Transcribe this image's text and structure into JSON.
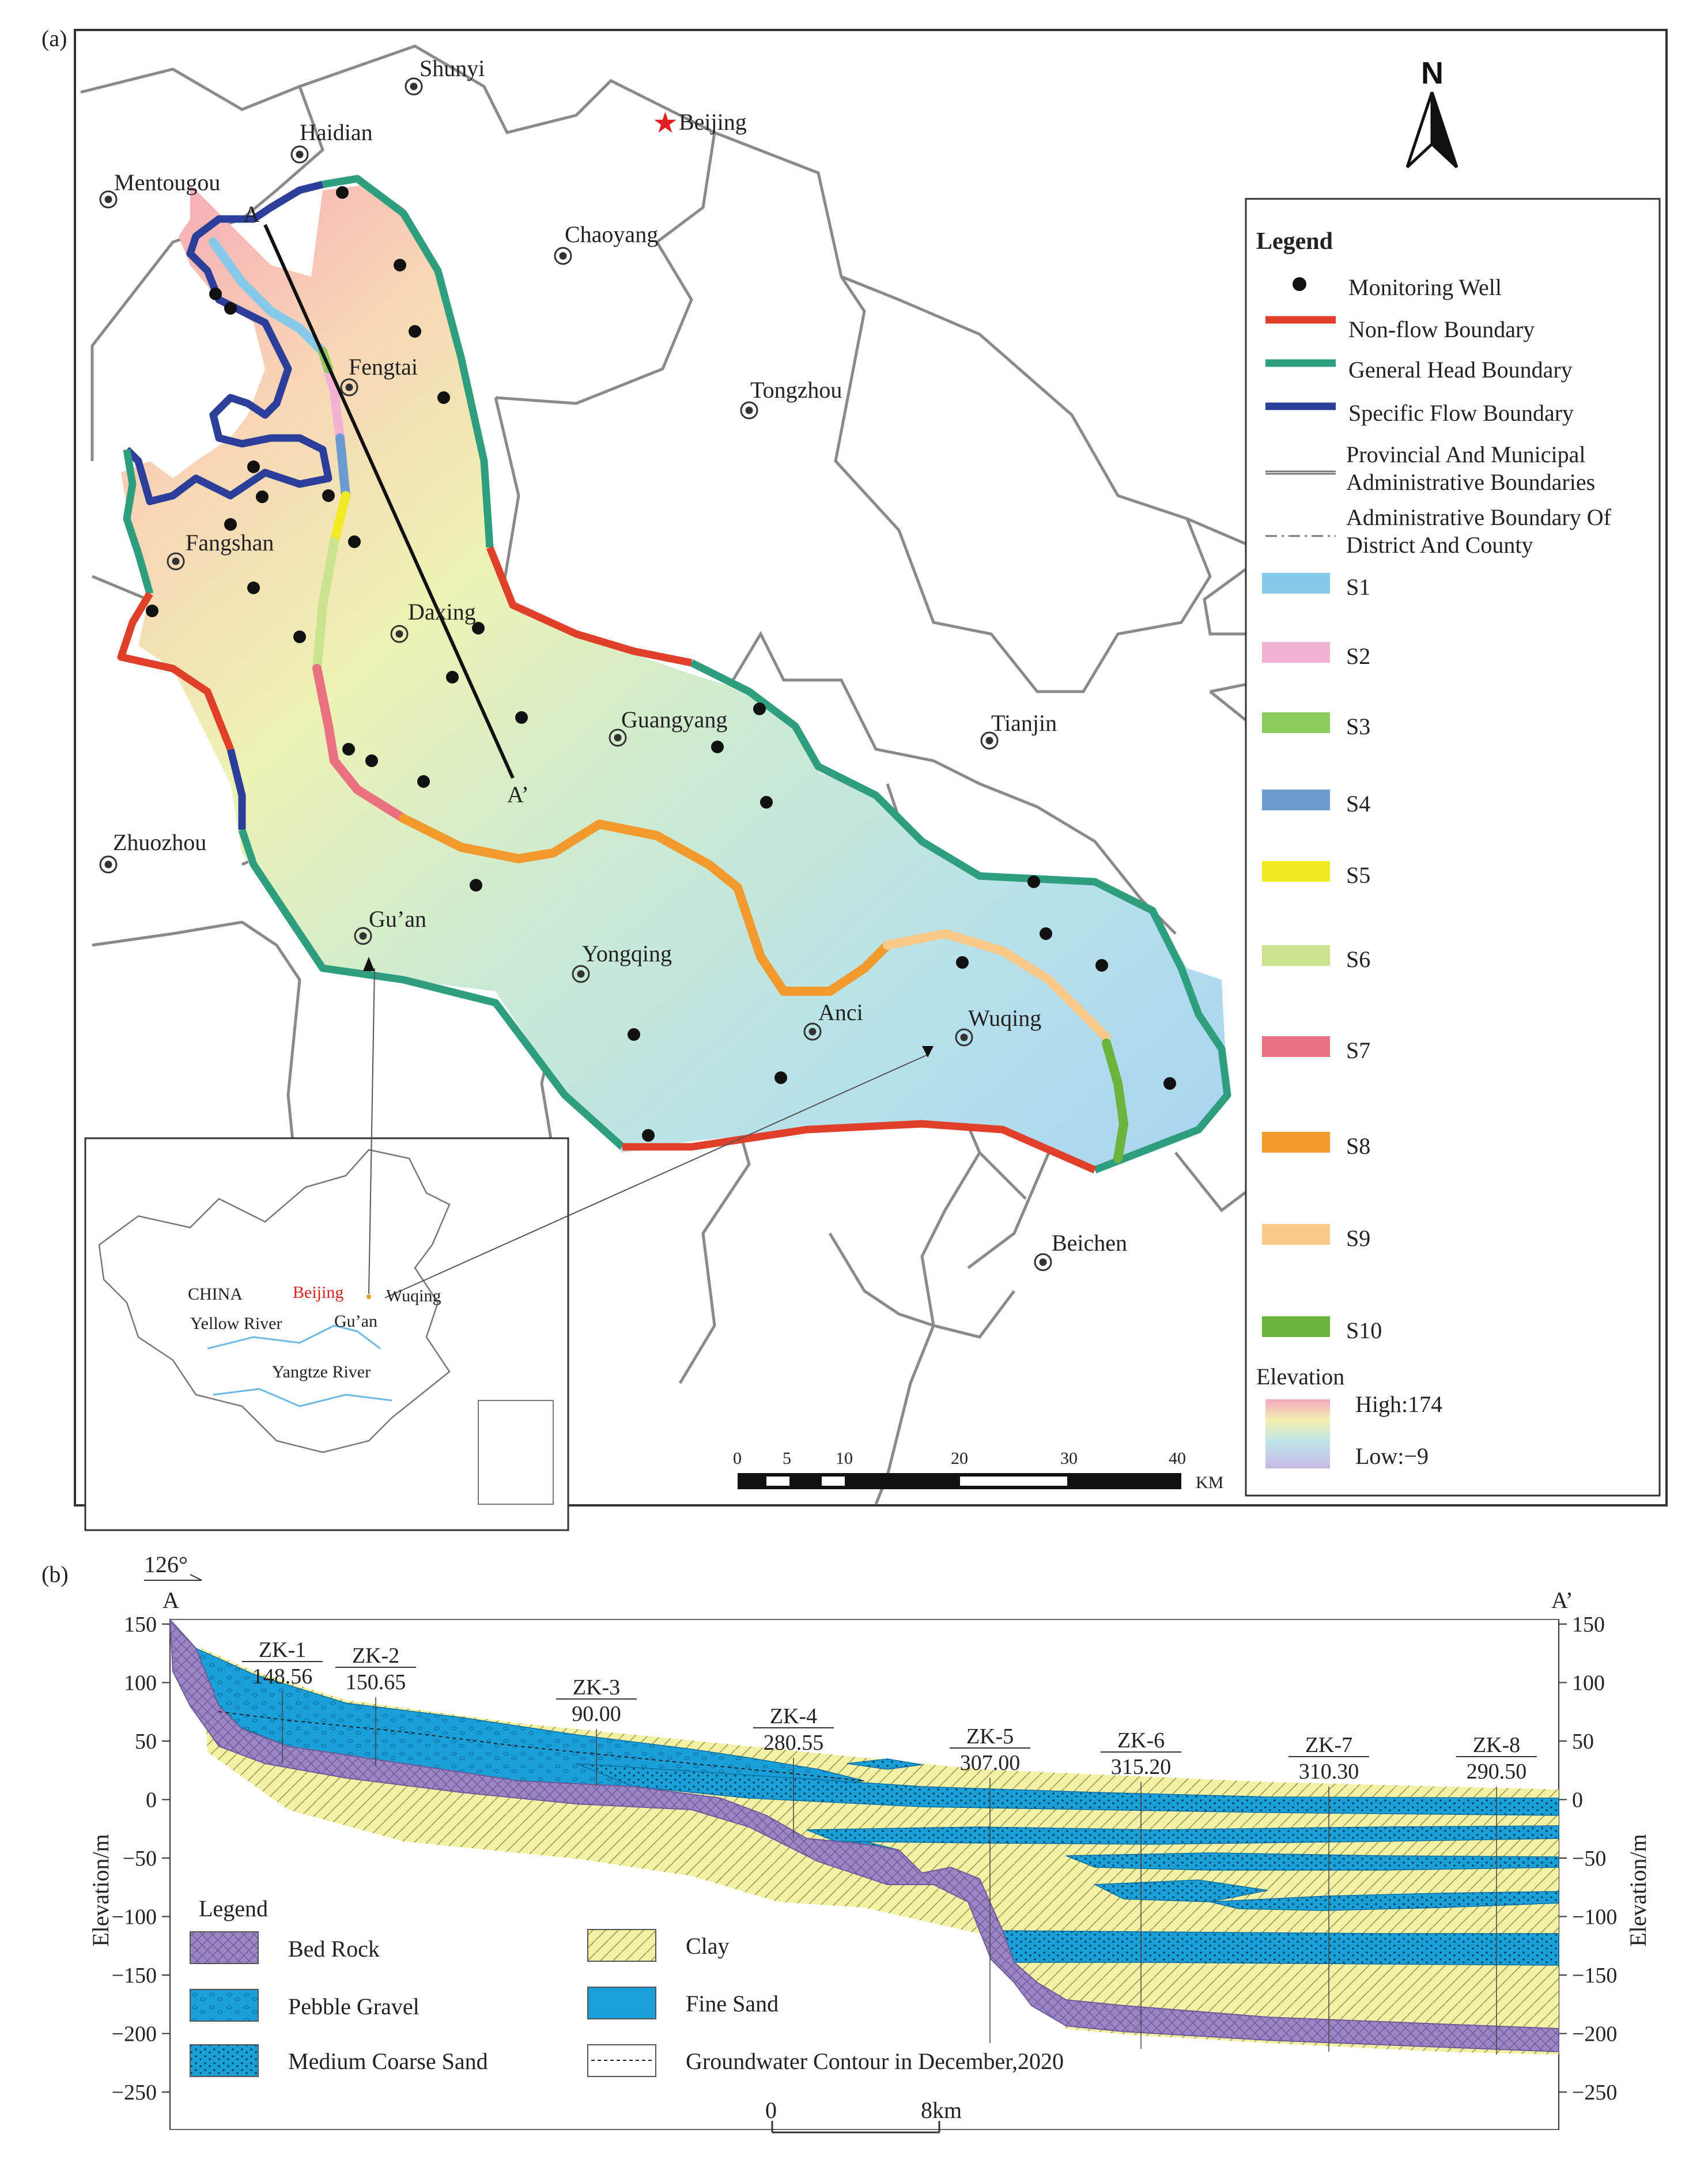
{
  "panel_a": {
    "label": "(a)",
    "north": "N",
    "places": [
      {
        "name": "Shunyi",
        "kind": "district"
      },
      {
        "name": "Haidian",
        "kind": "district"
      },
      {
        "name": "Mentougou",
        "kind": "district"
      },
      {
        "name": "Beijing",
        "kind": "capital"
      },
      {
        "name": "Chaoyang",
        "kind": "district"
      },
      {
        "name": "Fengtai",
        "kind": "district"
      },
      {
        "name": "Tongzhou",
        "kind": "district"
      },
      {
        "name": "Fangshan",
        "kind": "district"
      },
      {
        "name": "Daxing",
        "kind": "district"
      },
      {
        "name": "Guangyang",
        "kind": "district"
      },
      {
        "name": "Tianjin",
        "kind": "district"
      },
      {
        "name": "Zhuozhou",
        "kind": "district"
      },
      {
        "name": "Gu’an",
        "kind": "district"
      },
      {
        "name": "Yongqing",
        "kind": "district"
      },
      {
        "name": "Anci",
        "kind": "district"
      },
      {
        "name": "Wuqing",
        "kind": "district"
      },
      {
        "name": "Beichen",
        "kind": "district"
      }
    ],
    "section_start": "A",
    "section_end": "A’",
    "legend": {
      "title": "Legend",
      "items": [
        {
          "label": "Monitoring Well",
          "type": "dot",
          "color": "#111111"
        },
        {
          "label": "Non-flow Boundary",
          "type": "line",
          "color": "#e0402a"
        },
        {
          "label": "General Head Boundary",
          "type": "line",
          "color": "#2e9e7e"
        },
        {
          "label": "Specific Flow Boundary",
          "type": "line",
          "color": "#2b3f9a"
        },
        {
          "label": "Provincial And Municipal Administrative Boundaries",
          "type": "admin",
          "color": "#777777"
        },
        {
          "label": "Administrative Boundary Of District And County",
          "type": "dashdot",
          "color": "#777777"
        },
        {
          "label": "S1",
          "type": "bar",
          "color": "#86c9e8"
        },
        {
          "label": "S2",
          "type": "bar",
          "color": "#f2b3d3"
        },
        {
          "label": "S3",
          "type": "bar",
          "color": "#8ccc5e"
        },
        {
          "label": "S4",
          "type": "bar",
          "color": "#6c9bd2"
        },
        {
          "label": "S5",
          "type": "bar",
          "color": "#f2ea22"
        },
        {
          "label": "S6",
          "type": "bar",
          "color": "#c9e38e"
        },
        {
          "label": "S7",
          "type": "bar",
          "color": "#ea7280"
        },
        {
          "label": "S8",
          "type": "bar",
          "color": "#f39a2e"
        },
        {
          "label": "S9",
          "type": "bar",
          "color": "#f9c98a"
        },
        {
          "label": "S10",
          "type": "bar",
          "color": "#6bb33c"
        }
      ],
      "elevation_title": "Elevation",
      "elevation_high": "High:174",
      "elevation_low": "Low:−9"
    },
    "scale_ticks": [
      "0",
      "5",
      "10",
      "20",
      "30",
      "40"
    ],
    "scale_unit": "KM",
    "inset": {
      "labels": {
        "china": "CHINA",
        "beijing": "Beijing",
        "wuqing": "Wuqing",
        "yellow_river": "Yellow River",
        "guan": "Gu’an",
        "yangtze_river": "Yangtze River"
      }
    }
  },
  "panel_b": {
    "label": "(b)",
    "angle": "126°",
    "start": "A",
    "end": "A’",
    "y_axis_label": "Elevation/m",
    "y_ticks": [
      "150",
      "100",
      "50",
      "0",
      "−50",
      "−100",
      "−150",
      "−200",
      "−250"
    ],
    "boreholes": [
      {
        "name": "ZK-1",
        "value": "148.56"
      },
      {
        "name": "ZK-2",
        "value": "150.65"
      },
      {
        "name": "ZK-3",
        "value": "90.00"
      },
      {
        "name": "ZK-4",
        "value": "280.55"
      },
      {
        "name": "ZK-5",
        "value": "307.00"
      },
      {
        "name": "ZK-6",
        "value": "315.20"
      },
      {
        "name": "ZK-7",
        "value": "310.30"
      },
      {
        "name": "ZK-8",
        "value": "290.50"
      }
    ],
    "legend": {
      "title": "Legend",
      "items": [
        {
          "label": "Bed Rock",
          "swatch": "bedrock"
        },
        {
          "label": "Clay",
          "swatch": "clay"
        },
        {
          "label": "Pebble Gravel",
          "swatch": "pebble"
        },
        {
          "label": "Fine Sand",
          "swatch": "finesand"
        },
        {
          "label": "Medium Coarse Sand",
          "swatch": "medsand"
        },
        {
          "label": "Groundwater Contour in December,2020",
          "swatch": "contour"
        }
      ]
    },
    "scale_start": "0",
    "scale_end": "8km"
  },
  "colors": {
    "bedrock": "#9a86c2",
    "clay": "#f3f1a6",
    "sand": "#1a9fd9"
  }
}
